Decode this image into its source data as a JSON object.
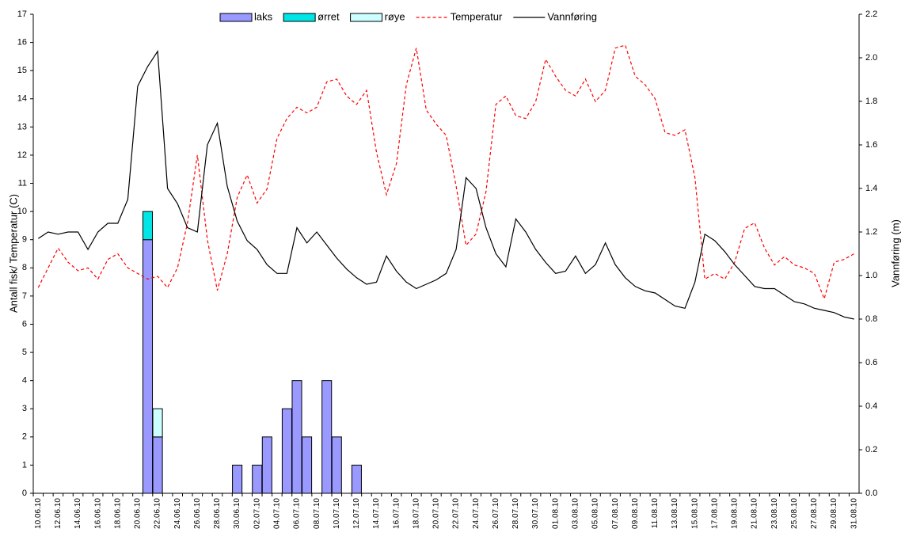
{
  "chart_data": {
    "type": "bar",
    "y_label": "Antall fisk/ Temperatur (C)",
    "y2_label": "Vannføring (m)",
    "categories": [
      "10.06.10",
      null,
      "12.06.10",
      null,
      "14.06.10",
      null,
      "16.06.10",
      null,
      "18.06.10",
      null,
      "20.06.10",
      null,
      "22.06.10",
      null,
      "24.06.10",
      null,
      "26.06.10",
      null,
      "28.06.10",
      null,
      "30.06.10",
      null,
      "02.07.10",
      null,
      "04.07.10",
      null,
      "06.07.10",
      null,
      "08.07.10",
      null,
      "10.07.10",
      null,
      "12.07.10",
      null,
      "14.07.10",
      null,
      "16.07.10",
      null,
      "18.07.10",
      null,
      "20.07.10",
      null,
      "22.07.10",
      null,
      "24.07.10",
      null,
      "26.07.10",
      null,
      "28.07.10",
      null,
      "30.07.10",
      null,
      "01.08.10",
      null,
      "03.08.10",
      null,
      "05.08.10",
      null,
      "07.08.10",
      null,
      "09.08.10",
      null,
      "11.08.10",
      null,
      "13.08.10",
      null,
      "15.08.10",
      null,
      "17.08.10",
      null,
      "19.08.10",
      null,
      "21.08.10",
      null,
      "23.08.10",
      null,
      "25.08.10",
      null,
      "27.08.10",
      null,
      "29.08.10",
      null,
      "31.08.10"
    ],
    "series": [
      {
        "name": "laks",
        "kind": "bar",
        "color": "#9999ff",
        "values": [
          0,
          0,
          0,
          0,
          0,
          0,
          0,
          0,
          0,
          0,
          0,
          9,
          2,
          0,
          0,
          0,
          0,
          0,
          0,
          0,
          1,
          0,
          1,
          2,
          0,
          3,
          4,
          2,
          0,
          4,
          2,
          0,
          1,
          0,
          0,
          0,
          0,
          0,
          0,
          0,
          0,
          0,
          0,
          0,
          0,
          0,
          0,
          0,
          0,
          0,
          0,
          0,
          0,
          0,
          0,
          0,
          0,
          0,
          0,
          0,
          0,
          0,
          0,
          0,
          0,
          0,
          0,
          0,
          0,
          0,
          0,
          0,
          0,
          0,
          0,
          0,
          0,
          0,
          0,
          0,
          0,
          0,
          0
        ]
      },
      {
        "name": "ørret",
        "kind": "bar",
        "color": "#00e6e6",
        "values": [
          0,
          0,
          0,
          0,
          0,
          0,
          0,
          0,
          0,
          0,
          0,
          1,
          0,
          0,
          0,
          0,
          0,
          0,
          0,
          0,
          0,
          0,
          0,
          0,
          0,
          0,
          0,
          0,
          0,
          0,
          0,
          0,
          0,
          0,
          0,
          0,
          0,
          0,
          0,
          0,
          0,
          0,
          0,
          0,
          0,
          0,
          0,
          0,
          0,
          0,
          0,
          0,
          0,
          0,
          0,
          0,
          0,
          0,
          0,
          0,
          0,
          0,
          0,
          0,
          0,
          0,
          0,
          0,
          0,
          0,
          0,
          0,
          0,
          0,
          0,
          0,
          0,
          0,
          0,
          0,
          0,
          0,
          0
        ]
      },
      {
        "name": "røye",
        "kind": "bar",
        "color": "#ccffff",
        "values": [
          0,
          0,
          0,
          0,
          0,
          0,
          0,
          0,
          0,
          0,
          0,
          0,
          1,
          0,
          0,
          0,
          0,
          0,
          0,
          0,
          0,
          0,
          0,
          0,
          0,
          0,
          0,
          0,
          0,
          0,
          0,
          0,
          0,
          0,
          0,
          0,
          0,
          0,
          0,
          0,
          0,
          0,
          0,
          0,
          0,
          0,
          0,
          0,
          0,
          0,
          0,
          0,
          0,
          0,
          0,
          0,
          0,
          0,
          0,
          0,
          0,
          0,
          0,
          0,
          0,
          0,
          0,
          0,
          0,
          0,
          0,
          0,
          0,
          0,
          0,
          0,
          0,
          0,
          0,
          0,
          0,
          0,
          0
        ]
      },
      {
        "name": "Temperatur",
        "kind": "line",
        "dashed": true,
        "color": "#ff0000",
        "values": [
          7.3,
          8.0,
          8.7,
          8.2,
          7.9,
          8.0,
          7.6,
          8.3,
          8.5,
          8.0,
          7.8,
          7.6,
          7.7,
          7.3,
          8.0,
          9.6,
          12.0,
          9.0,
          7.2,
          8.5,
          10.5,
          11.3,
          10.3,
          10.8,
          12.6,
          13.3,
          13.7,
          13.5,
          13.7,
          14.6,
          14.7,
          14.1,
          13.8,
          14.3,
          12.1,
          10.6,
          11.7,
          14.5,
          15.8,
          13.6,
          13.1,
          12.7,
          10.9,
          8.8,
          9.2,
          10.7,
          13.8,
          14.1,
          13.4,
          13.3,
          13.9,
          15.4,
          14.8,
          14.3,
          14.1,
          14.7,
          13.9,
          14.3,
          15.8,
          15.9,
          14.8,
          14.5,
          14.0,
          12.8,
          12.7,
          12.9,
          11.2,
          7.6,
          7.8,
          7.6,
          8.2,
          9.4,
          9.6,
          8.7,
          8.1,
          8.4,
          8.1,
          8.0,
          7.8,
          6.9,
          8.2,
          8.3,
          8.5
        ]
      },
      {
        "name": "Vannføring",
        "kind": "line",
        "axis": "y2",
        "color": "#000000",
        "values": [
          1.17,
          1.2,
          1.19,
          1.2,
          1.2,
          1.12,
          1.2,
          1.24,
          1.24,
          1.35,
          1.87,
          1.96,
          2.03,
          1.4,
          1.33,
          1.22,
          1.2,
          1.6,
          1.7,
          1.41,
          1.25,
          1.16,
          1.12,
          1.05,
          1.01,
          1.01,
          1.22,
          1.15,
          1.2,
          1.14,
          1.08,
          1.03,
          0.99,
          0.96,
          0.97,
          1.09,
          1.02,
          0.97,
          0.94,
          0.96,
          0.98,
          1.01,
          1.12,
          1.45,
          1.4,
          1.22,
          1.1,
          1.04,
          1.26,
          1.2,
          1.12,
          1.06,
          1.01,
          1.02,
          1.09,
          1.01,
          1.05,
          1.15,
          1.05,
          0.99,
          0.95,
          0.93,
          0.92,
          0.89,
          0.86,
          0.85,
          0.97,
          1.19,
          1.16,
          1.11,
          1.05,
          1.0,
          0.95,
          0.94,
          0.94,
          0.91,
          0.88,
          0.87,
          0.85,
          0.84,
          0.83,
          0.81,
          0.8
        ]
      }
    ],
    "stacked": true,
    "ylim": [
      0,
      17
    ],
    "yticks": [
      0,
      1,
      2,
      3,
      4,
      5,
      6,
      7,
      8,
      9,
      10,
      11,
      12,
      13,
      14,
      15,
      16,
      17
    ],
    "y2lim": [
      0,
      2.2
    ],
    "y2ticks": [
      {
        "value": 0,
        "label": "0.0"
      },
      0.2,
      0.4,
      0.6,
      0.8,
      {
        "value": 1,
        "label": "1.0"
      },
      1.2,
      1.4,
      1.6,
      1.8,
      {
        "value": 2,
        "label": "2.0"
      },
      2.2
    ],
    "legend": "top"
  }
}
